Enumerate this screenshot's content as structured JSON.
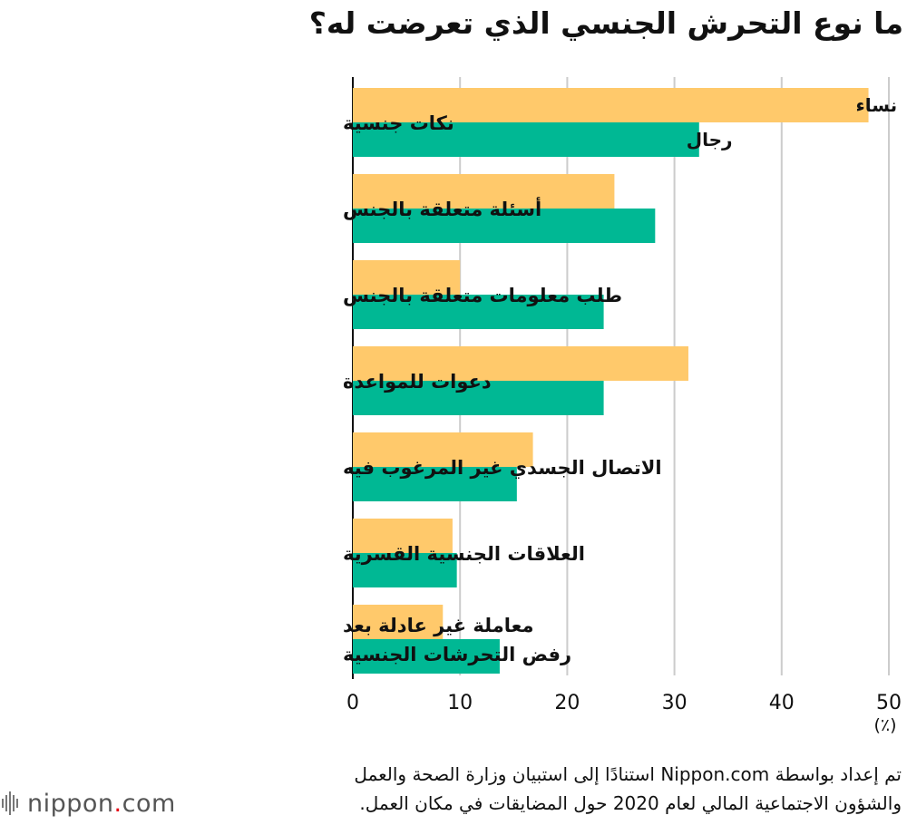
{
  "title": "ما نوع التحرش الجنسي الذي تعرضت له؟",
  "chart_data": {
    "type": "bar",
    "orientation": "horizontal",
    "categories": [
      [
        "نكات جنسية"
      ],
      [
        "أسئلة متعلقة بالجنس"
      ],
      [
        "طلب معلومات متعلقة بالجنس"
      ],
      [
        "دعوات للمواعدة"
      ],
      [
        "الاتصال الجسدي غير المرغوب فيه"
      ],
      [
        "العلاقات الجنسية القسرية"
      ],
      [
        "معاملة غير عادلة بعد",
        "رفض التحرشات الجنسية"
      ]
    ],
    "series": [
      {
        "name": "نساء",
        "color": "#ffc96b",
        "values": [
          48.1,
          24.4,
          10.0,
          31.3,
          16.8,
          9.3,
          8.4
        ]
      },
      {
        "name": "رجال",
        "color": "#00b894",
        "values": [
          32.3,
          28.2,
          23.4,
          23.4,
          15.3,
          9.7,
          13.7
        ]
      }
    ],
    "xlim": [
      0,
      50
    ],
    "xticks": [
      0,
      10,
      20,
      30,
      40,
      50
    ],
    "unit_label": "(٪)",
    "grid": true,
    "legend": "inline-in-first-bars"
  },
  "source": {
    "line1": "تم إعداد بواسطة Nippon.com استنادًا إلى استبيان وزارة الصحة والعمل",
    "line2": "والشؤون الاجتماعية المالي لعام 2020 حول المضايقات في مكان العمل."
  },
  "logo": {
    "text": "nippon",
    "dot": ".",
    "suffix": "com"
  }
}
